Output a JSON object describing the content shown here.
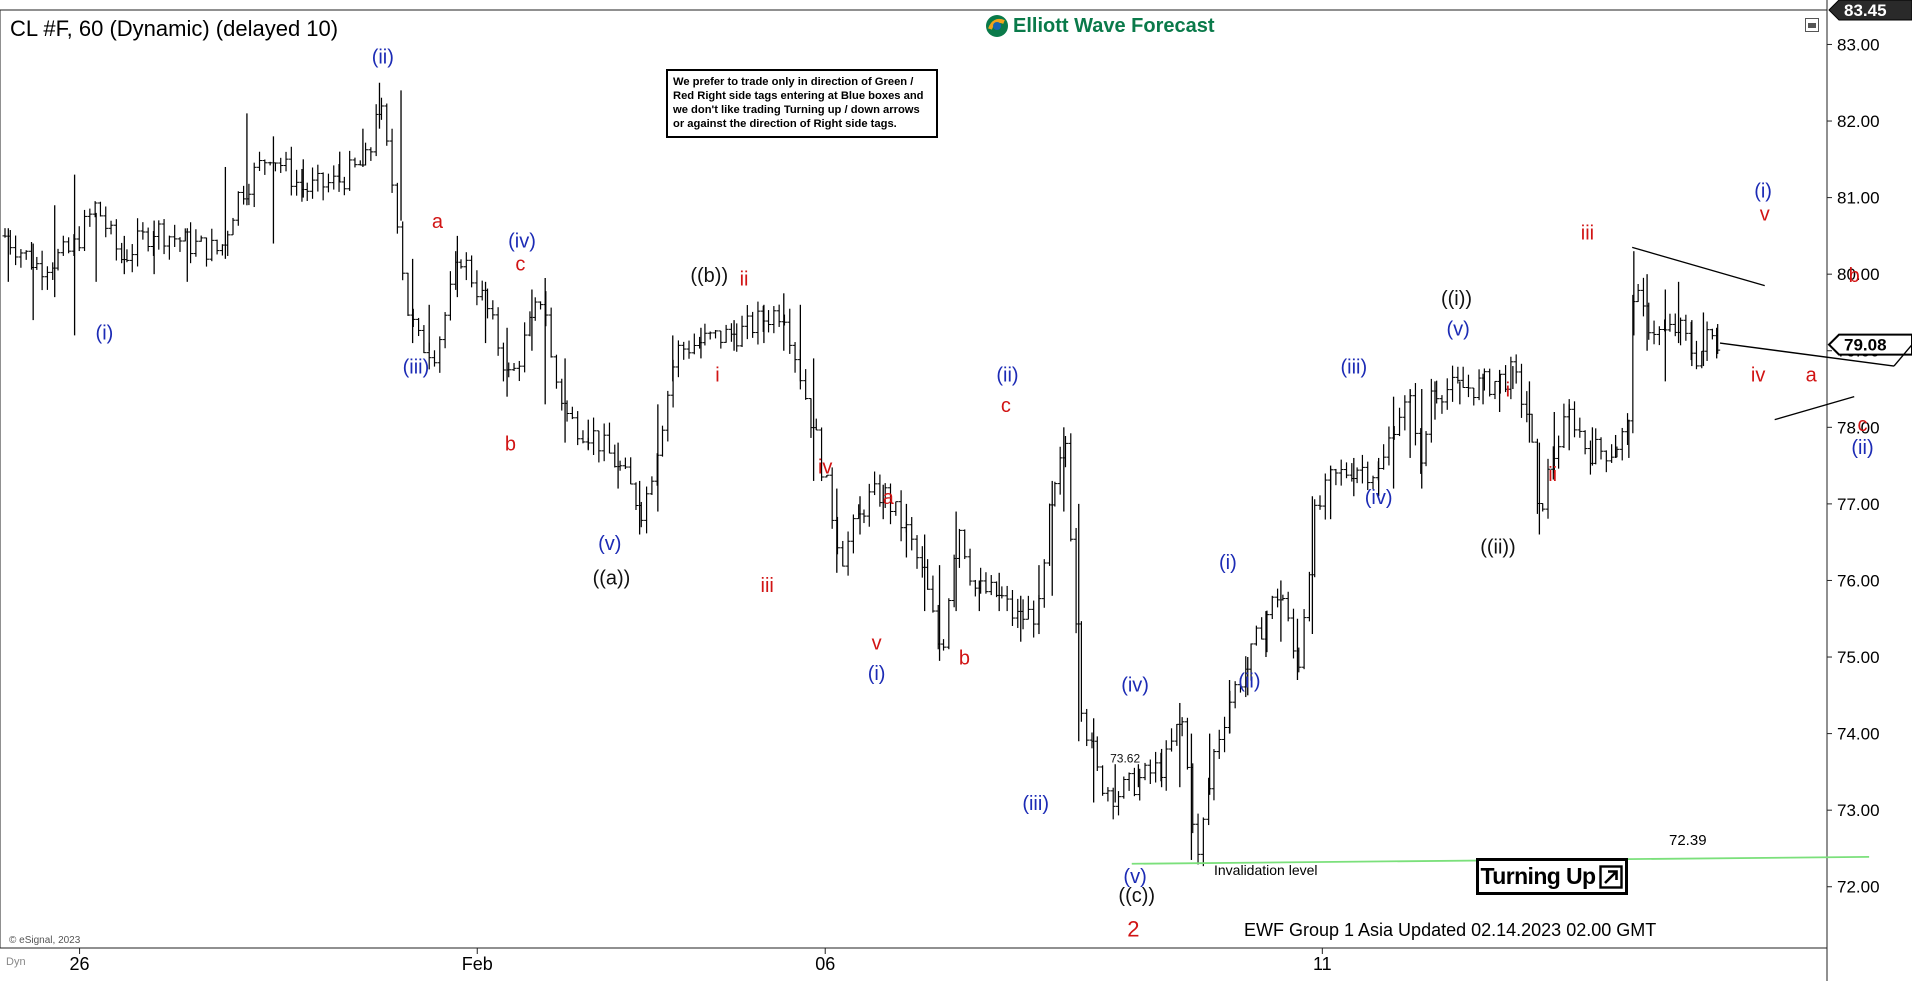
{
  "header": {
    "title": "CL #F, 60 (Dynamic) (delayed 10)",
    "logo_text": "Elliott Wave Forecast",
    "note": "We prefer to trade only in direction of Green / Red Right side tags entering at Blue boxes and we don't like trading Turning up / down arrows or against the direction of Right side tags.",
    "copyright": "© eSignal, 2023",
    "dyn_label": "Dyn"
  },
  "footer": {
    "updated": "EWF Group 1 Asia Updated 02.14.2023 02.00 GMT",
    "badge": "Turning Up",
    "invalidation_label": "Invalidation level",
    "invalidation_value": "72.39"
  },
  "colors": {
    "blue_label": "#1c2bb5",
    "red_label": "#d11414",
    "black_label": "#111111",
    "invalidation_line": "#7be07b",
    "bars": "#000000",
    "logo_green": "#0a7a4a"
  },
  "chart_data": {
    "type": "ohlc",
    "title": "CL #F, 60 (Dynamic) (delayed 10)",
    "ylim": [
      71.2,
      83.45
    ],
    "y_ticks": [
      "83.00",
      "82.00",
      "81.00",
      "80.00",
      "79.00",
      "78.00",
      "77.00",
      "76.00",
      "75.00",
      "74.00",
      "73.00",
      "72.00"
    ],
    "price_badges": [
      {
        "label": "83.45",
        "value": 83.45
      },
      {
        "label": "79.08",
        "value": 79.08
      }
    ],
    "x_ticks": [
      {
        "label": "26",
        "x": 0.5
      },
      {
        "label": "Feb",
        "x": 24.5
      },
      {
        "label": "06",
        "x": 45.5
      },
      {
        "label": "11",
        "x": 75.5
      }
    ],
    "xlim": [
      -4,
      99.5
    ],
    "path": [
      [
        -4,
        80.5
      ],
      [
        -2,
        80.1
      ],
      [
        0,
        80.3
      ],
      [
        1.5,
        80.9
      ],
      [
        3,
        80.2
      ],
      [
        5,
        80.6
      ],
      [
        7,
        80.4
      ],
      [
        9,
        80.3
      ],
      [
        10,
        81.0
      ],
      [
        12,
        81.6
      ],
      [
        14,
        81.1
      ],
      [
        16,
        81.2
      ],
      [
        18,
        81.5
      ],
      [
        18.5,
        82.35
      ],
      [
        19.8,
        80.6
      ],
      [
        20.2,
        79.6
      ],
      [
        21,
        79.1
      ],
      [
        22,
        79.0
      ],
      [
        23.5,
        80.25
      ],
      [
        25,
        79.6
      ],
      [
        26.5,
        78.6
      ],
      [
        28,
        79.5
      ],
      [
        28.5,
        79.8
      ],
      [
        29,
        78.8
      ],
      [
        30,
        78.1
      ],
      [
        31.5,
        77.9
      ],
      [
        33,
        77.5
      ],
      [
        34.5,
        76.9
      ],
      [
        35.5,
        77.9
      ],
      [
        36.5,
        79.0
      ],
      [
        38.5,
        79.15
      ],
      [
        40.5,
        79.25
      ],
      [
        42,
        79.45
      ],
      [
        43,
        79.55
      ],
      [
        44,
        78.7
      ],
      [
        45,
        77.8
      ],
      [
        46.5,
        76.3
      ],
      [
        48,
        77.05
      ],
      [
        49,
        77.15
      ],
      [
        50.5,
        76.6
      ],
      [
        51.5,
        76.0
      ],
      [
        52.5,
        75.0
      ],
      [
        53.5,
        76.8
      ],
      [
        54.5,
        75.9
      ],
      [
        56,
        75.8
      ],
      [
        57,
        75.5
      ],
      [
        58.5,
        75.6
      ],
      [
        59,
        76.8
      ],
      [
        60,
        77.8
      ],
      [
        61,
        74.3
      ],
      [
        62,
        73.4
      ],
      [
        63,
        73.2
      ],
      [
        64.5,
        73.4
      ],
      [
        66,
        73.6
      ],
      [
        67,
        74.2
      ],
      [
        68,
        72.35
      ],
      [
        69,
        73.8
      ],
      [
        70,
        74.5
      ],
      [
        71,
        74.9
      ],
      [
        72,
        75.5
      ],
      [
        73,
        75.9
      ],
      [
        74,
        74.8
      ],
      [
        75,
        76.8
      ],
      [
        76,
        77.3
      ],
      [
        77.5,
        77.5
      ],
      [
        79,
        77.4
      ],
      [
        80,
        78.2
      ],
      [
        81,
        78.3
      ],
      [
        81.5,
        77.3
      ],
      [
        82,
        78.5
      ],
      [
        83.5,
        78.5
      ],
      [
        85,
        78.55
      ],
      [
        86,
        78.6
      ],
      [
        87,
        78.7
      ],
      [
        88,
        78.1
      ],
      [
        88.5,
        76.8
      ],
      [
        89.5,
        77.7
      ],
      [
        90.5,
        78.2
      ],
      [
        91.5,
        77.7
      ],
      [
        93,
        77.7
      ],
      [
        94,
        78.0
      ],
      [
        94.2,
        79.8
      ],
      [
        95,
        79.4
      ],
      [
        96,
        79.2
      ],
      [
        97,
        79.3
      ],
      [
        97.8,
        79.0
      ],
      [
        98.2,
        78.9
      ],
      [
        98.8,
        79.2
      ],
      [
        99.5,
        79.1
      ]
    ],
    "hourly_bars": [
      {
        "x": -3.8,
        "h": 80.6,
        "l": 79.9
      },
      {
        "x": -2.3,
        "h": 80.4,
        "l": 79.4
      },
      {
        "x": -1.0,
        "h": 80.9,
        "l": 79.7
      },
      {
        "x": 0.2,
        "h": 81.3,
        "l": 79.2
      },
      {
        "x": 1.5,
        "h": 80.8,
        "l": 79.9
      },
      {
        "x": 3.2,
        "h": 80.5,
        "l": 80.0
      },
      {
        "x": 5.0,
        "h": 80.7,
        "l": 80.0
      },
      {
        "x": 7.0,
        "h": 80.6,
        "l": 79.9
      },
      {
        "x": 9.3,
        "h": 81.4,
        "l": 80.2
      },
      {
        "x": 10.6,
        "h": 82.1,
        "l": 80.9
      },
      {
        "x": 12.2,
        "h": 81.8,
        "l": 80.4
      },
      {
        "x": 14.0,
        "h": 81.5,
        "l": 81.0
      },
      {
        "x": 16.2,
        "h": 81.6,
        "l": 81.2
      },
      {
        "x": 17.6,
        "h": 81.9,
        "l": 81.4
      },
      {
        "x": 18.6,
        "h": 82.5,
        "l": 81.9
      },
      {
        "x": 19.9,
        "h": 82.4,
        "l": 80.7
      },
      {
        "x": 20.6,
        "h": 80.2,
        "l": 79.1
      },
      {
        "x": 21.6,
        "h": 79.6,
        "l": 79.0
      },
      {
        "x": 23.3,
        "h": 80.5,
        "l": 79.7
      },
      {
        "x": 25.0,
        "h": 79.9,
        "l": 79.1
      },
      {
        "x": 26.3,
        "h": 79.3,
        "l": 78.4
      },
      {
        "x": 27.8,
        "h": 79.8,
        "l": 79.0
      },
      {
        "x": 28.6,
        "h": 79.95,
        "l": 78.3
      },
      {
        "x": 29.8,
        "h": 78.9,
        "l": 77.8
      },
      {
        "x": 31.2,
        "h": 78.1,
        "l": 77.7
      },
      {
        "x": 33.0,
        "h": 77.8,
        "l": 77.2
      },
      {
        "x": 34.3,
        "h": 77.3,
        "l": 76.6
      },
      {
        "x": 35.4,
        "h": 78.3,
        "l": 76.9
      },
      {
        "x": 36.3,
        "h": 79.2,
        "l": 78.6
      },
      {
        "x": 38.0,
        "h": 79.3,
        "l": 78.9
      },
      {
        "x": 40.0,
        "h": 79.4,
        "l": 79.0
      },
      {
        "x": 41.8,
        "h": 79.6,
        "l": 79.1
      },
      {
        "x": 43.0,
        "h": 79.75,
        "l": 79.0
      },
      {
        "x": 44.0,
        "h": 79.6,
        "l": 78.6
      },
      {
        "x": 44.8,
        "h": 78.9,
        "l": 77.3
      },
      {
        "x": 46.2,
        "h": 77.2,
        "l": 76.1
      },
      {
        "x": 47.6,
        "h": 77.1,
        "l": 76.6
      },
      {
        "x": 49.0,
        "h": 77.25,
        "l": 76.8
      },
      {
        "x": 50.4,
        "h": 77.0,
        "l": 76.3
      },
      {
        "x": 51.5,
        "h": 76.6,
        "l": 75.6
      },
      {
        "x": 52.4,
        "h": 76.2,
        "l": 74.95
      },
      {
        "x": 53.4,
        "h": 76.9,
        "l": 75.6
      },
      {
        "x": 54.8,
        "h": 76.0,
        "l": 75.6
      },
      {
        "x": 56.0,
        "h": 76.1,
        "l": 75.6
      },
      {
        "x": 57.3,
        "h": 75.8,
        "l": 75.2
      },
      {
        "x": 58.4,
        "h": 76.2,
        "l": 75.3
      },
      {
        "x": 59.2,
        "h": 77.3,
        "l": 75.8
      },
      {
        "x": 59.9,
        "h": 78.0,
        "l": 76.9
      },
      {
        "x": 60.8,
        "h": 77.0,
        "l": 73.9
      },
      {
        "x": 61.7,
        "h": 74.2,
        "l": 73.1
      },
      {
        "x": 63.0,
        "h": 73.6,
        "l": 73.1
      },
      {
        "x": 64.4,
        "h": 73.6,
        "l": 73.3
      },
      {
        "x": 65.8,
        "h": 73.8,
        "l": 73.3
      },
      {
        "x": 66.9,
        "h": 74.4,
        "l": 73.3
      },
      {
        "x": 67.6,
        "h": 74.0,
        "l": 72.35
      },
      {
        "x": 68.7,
        "h": 74.0,
        "l": 73.2
      },
      {
        "x": 69.9,
        "h": 74.7,
        "l": 74.0
      },
      {
        "x": 71.0,
        "h": 75.0,
        "l": 74.5
      },
      {
        "x": 72.1,
        "h": 75.6,
        "l": 75.0
      },
      {
        "x": 73.0,
        "h": 76.0,
        "l": 75.2
      },
      {
        "x": 74.0,
        "h": 75.5,
        "l": 74.7
      },
      {
        "x": 74.9,
        "h": 77.1,
        "l": 75.3
      },
      {
        "x": 76.0,
        "h": 77.5,
        "l": 76.8
      },
      {
        "x": 77.4,
        "h": 77.6,
        "l": 77.1
      },
      {
        "x": 78.9,
        "h": 77.6,
        "l": 77.1
      },
      {
        "x": 79.8,
        "h": 78.4,
        "l": 77.2
      },
      {
        "x": 80.8,
        "h": 78.5,
        "l": 77.6
      },
      {
        "x": 81.5,
        "h": 78.5,
        "l": 77.2
      },
      {
        "x": 82.3,
        "h": 78.6,
        "l": 78.1
      },
      {
        "x": 83.8,
        "h": 78.6,
        "l": 78.3
      },
      {
        "x": 85.2,
        "h": 78.7,
        "l": 78.3
      },
      {
        "x": 86.2,
        "h": 78.75,
        "l": 78.2
      },
      {
        "x": 87.0,
        "h": 78.8,
        "l": 78.5
      },
      {
        "x": 88.0,
        "h": 78.6,
        "l": 77.8
      },
      {
        "x": 88.6,
        "h": 77.8,
        "l": 76.6
      },
      {
        "x": 89.5,
        "h": 78.2,
        "l": 77.4
      },
      {
        "x": 90.4,
        "h": 78.3,
        "l": 77.7
      },
      {
        "x": 91.8,
        "h": 78.0,
        "l": 77.5
      },
      {
        "x": 93.2,
        "h": 77.9,
        "l": 77.6
      },
      {
        "x": 94.0,
        "h": 78.1,
        "l": 77.6
      },
      {
        "x": 94.3,
        "h": 80.3,
        "l": 79.2
      },
      {
        "x": 95.1,
        "h": 80.0,
        "l": 79.0
      },
      {
        "x": 96.2,
        "h": 79.8,
        "l": 78.6
      },
      {
        "x": 97.0,
        "h": 79.9,
        "l": 79.1
      },
      {
        "x": 97.8,
        "h": 79.4,
        "l": 78.8
      },
      {
        "x": 98.5,
        "h": 79.5,
        "l": 78.8
      },
      {
        "x": 99.3,
        "h": 79.3,
        "l": 78.9
      }
    ],
    "projection": [
      [
        110.0,
        78.8
      ],
      [
        113.5,
        79.7
      ],
      [
        114.3,
        78.1
      ],
      [
        117.5,
        81.1
      ]
    ],
    "triangle": [
      [
        94.2,
        80.35
      ],
      [
        102.2,
        79.85
      ],
      [
        102.8,
        78.1
      ],
      [
        107.6,
        78.4
      ],
      [
        106.5,
        79.5
      ]
    ],
    "annotations": [
      {
        "text": "(i)",
        "x": 2.0,
        "y": 79.15,
        "color": "blue"
      },
      {
        "text": "(ii)",
        "x": 18.8,
        "y": 82.75,
        "color": "blue"
      },
      {
        "text": "a",
        "x": 22.1,
        "y": 80.6,
        "color": "red"
      },
      {
        "text": "(iii)",
        "x": 20.8,
        "y": 78.7,
        "color": "blue"
      },
      {
        "text": "(iv)",
        "x": 27.2,
        "y": 80.35,
        "color": "blue"
      },
      {
        "text": "c",
        "x": 27.1,
        "y": 80.05,
        "color": "red"
      },
      {
        "text": "b",
        "x": 26.5,
        "y": 77.7,
        "color": "red"
      },
      {
        "text": "(v)",
        "x": 32.5,
        "y": 76.4,
        "color": "blue"
      },
      {
        "text": "((a))",
        "x": 32.6,
        "y": 75.95,
        "color": "black"
      },
      {
        "text": "((b))",
        "x": 38.5,
        "y": 79.9,
        "color": "black"
      },
      {
        "text": "ii",
        "x": 40.6,
        "y": 79.85,
        "color": "red"
      },
      {
        "text": "i",
        "x": 39.0,
        "y": 78.6,
        "color": "red"
      },
      {
        "text": "iii",
        "x": 42.0,
        "y": 75.85,
        "color": "red"
      },
      {
        "text": "iv",
        "x": 45.5,
        "y": 77.4,
        "color": "red"
      },
      {
        "text": "a",
        "x": 49.3,
        "y": 77.0,
        "color": "red"
      },
      {
        "text": "v",
        "x": 48.6,
        "y": 75.1,
        "color": "red"
      },
      {
        "text": "(i)",
        "x": 48.6,
        "y": 74.7,
        "color": "blue"
      },
      {
        "text": "b",
        "x": 53.9,
        "y": 74.9,
        "color": "red"
      },
      {
        "text": "(ii)",
        "x": 56.5,
        "y": 78.6,
        "color": "blue"
      },
      {
        "text": "c",
        "x": 56.4,
        "y": 78.2,
        "color": "red"
      },
      {
        "text": "(iii)",
        "x": 58.2,
        "y": 73.0,
        "color": "blue"
      },
      {
        "text": "(iv)",
        "x": 64.2,
        "y": 74.55,
        "color": "blue"
      },
      {
        "text": "73.62",
        "x": 63.6,
        "y": 73.62,
        "color": "black"
      },
      {
        "text": "(v)",
        "x": 64.2,
        "y": 72.05,
        "color": "blue"
      },
      {
        "text": "((c))",
        "x": 64.3,
        "y": 71.8,
        "color": "black"
      },
      {
        "text": "2",
        "x": 64.1,
        "y": 71.35,
        "color": "red"
      },
      {
        "text": "(i)",
        "x": 69.8,
        "y": 76.15,
        "color": "blue"
      },
      {
        "text": "(ii)",
        "x": 71.1,
        "y": 74.6,
        "color": "blue"
      },
      {
        "text": "(iii)",
        "x": 77.4,
        "y": 78.7,
        "color": "blue"
      },
      {
        "text": "(iv)",
        "x": 78.9,
        "y": 77.0,
        "color": "blue"
      },
      {
        "text": "((i))",
        "x": 83.6,
        "y": 79.6,
        "color": "black"
      },
      {
        "text": "(v)",
        "x": 83.7,
        "y": 79.2,
        "color": "blue"
      },
      {
        "text": "i",
        "x": 86.7,
        "y": 78.4,
        "color": "red"
      },
      {
        "text": "ii",
        "x": 89.4,
        "y": 77.3,
        "color": "red"
      },
      {
        "text": "((ii))",
        "x": 86.1,
        "y": 76.35,
        "color": "black"
      },
      {
        "text": "iii",
        "x": 91.5,
        "y": 80.45,
        "color": "red"
      },
      {
        "text": "(i)",
        "x": 102.1,
        "y": 81.0,
        "color": "blue"
      },
      {
        "text": "v",
        "x": 102.2,
        "y": 80.7,
        "color": "red"
      },
      {
        "text": "iv",
        "x": 101.8,
        "y": 78.6,
        "color": "red"
      },
      {
        "text": "b",
        "x": 107.6,
        "y": 79.9,
        "color": "red"
      },
      {
        "text": "a",
        "x": 105.0,
        "y": 78.6,
        "color": "red"
      },
      {
        "text": "c",
        "x": 108.1,
        "y": 77.95,
        "color": "red"
      },
      {
        "text": "(ii)",
        "x": 108.1,
        "y": 77.65,
        "color": "blue"
      }
    ],
    "invalidation": {
      "x0": 64.0,
      "x1": 108.5,
      "y0": 72.3,
      "y1": 72.39
    }
  }
}
